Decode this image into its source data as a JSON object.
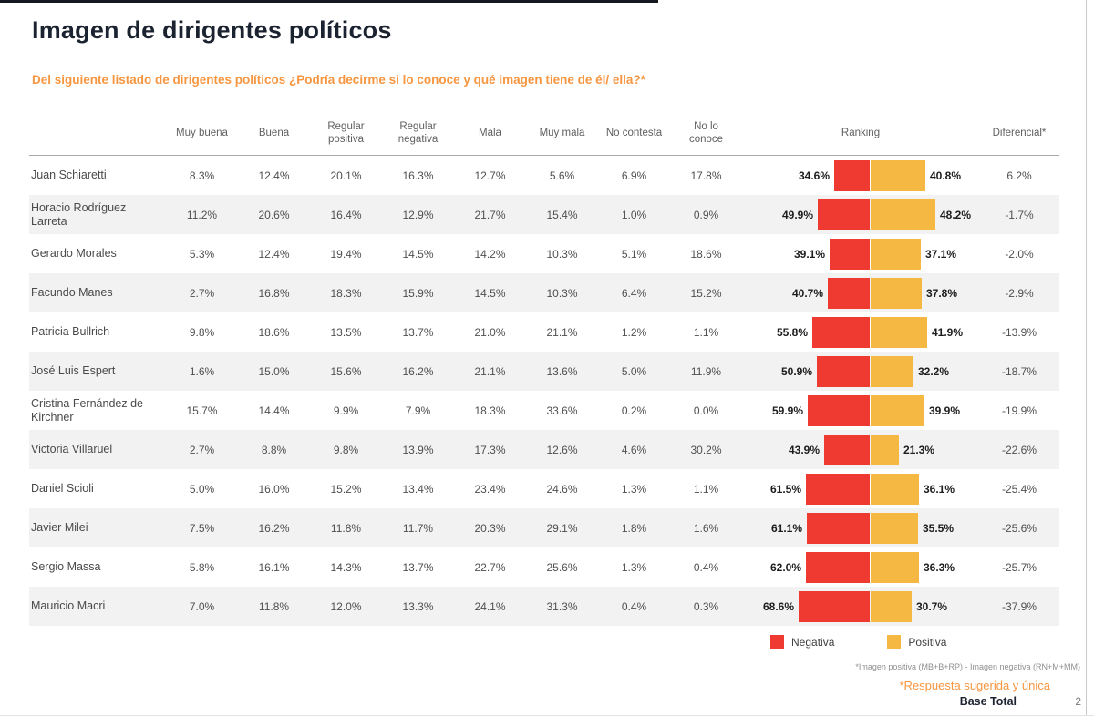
{
  "page": {
    "title": "Imagen de dirigentes políticos",
    "question": "Del siguiente listado de dirigentes políticos ¿Podría decirme si lo conoce y qué imagen tiene de él/ ella?*",
    "footnote_formula": "*Imagen positiva (MB+B+RP) - Imagen negativa (RN+M+MM)",
    "footnote_suggested": "*Respuesta sugerida y única",
    "base_label": "Base Total",
    "page_number": "2"
  },
  "colors": {
    "negative": "#ee3a31",
    "positive": "#f5b843",
    "accent_orange": "#f79640",
    "title_dark": "#1b2230"
  },
  "legend": [
    {
      "label": "Negativa",
      "color": "#ee3a31"
    },
    {
      "label": "Positiva",
      "color": "#f5b843"
    }
  ],
  "table": {
    "columns": [
      "Muy buena",
      "Buena",
      "Regular positiva",
      "Regular negativa",
      "Mala",
      "Muy mala",
      "No contesta",
      "No lo conoce",
      "Ranking",
      "Diferencial*"
    ],
    "rows": [
      {
        "name": "Juan Schiaretti",
        "values": [
          "8.3%",
          "12.4%",
          "20.1%",
          "16.3%",
          "12.7%",
          "5.6%",
          "6.9%",
          "17.8%"
        ],
        "neg": 34.6,
        "pos": 40.8,
        "dif": "6.2%"
      },
      {
        "name": "Horacio Rodríguez Larreta",
        "values": [
          "11.2%",
          "20.6%",
          "16.4%",
          "12.9%",
          "21.7%",
          "15.4%",
          "1.0%",
          "0.9%"
        ],
        "neg": 49.9,
        "pos": 48.2,
        "dif": "-1.7%"
      },
      {
        "name": "Gerardo Morales",
        "values": [
          "5.3%",
          "12.4%",
          "19.4%",
          "14.5%",
          "14.2%",
          "10.3%",
          "5.1%",
          "18.6%"
        ],
        "neg": 39.1,
        "pos": 37.1,
        "dif": "-2.0%"
      },
      {
        "name": "Facundo Manes",
        "values": [
          "2.7%",
          "16.8%",
          "18.3%",
          "15.9%",
          "14.5%",
          "10.3%",
          "6.4%",
          "15.2%"
        ],
        "neg": 40.7,
        "pos": 37.8,
        "dif": "-2.9%"
      },
      {
        "name": "Patricia Bullrich",
        "values": [
          "9.8%",
          "18.6%",
          "13.5%",
          "13.7%",
          "21.0%",
          "21.1%",
          "1.2%",
          "1.1%"
        ],
        "neg": 55.8,
        "pos": 41.9,
        "dif": "-13.9%"
      },
      {
        "name": "José Luis Espert",
        "values": [
          "1.6%",
          "15.0%",
          "15.6%",
          "16.2%",
          "21.1%",
          "13.6%",
          "5.0%",
          "11.9%"
        ],
        "neg": 50.9,
        "pos": 32.2,
        "dif": "-18.7%"
      },
      {
        "name": "Cristina Fernández de Kirchner",
        "values": [
          "15.7%",
          "14.4%",
          "9.9%",
          "7.9%",
          "18.3%",
          "33.6%",
          "0.2%",
          "0.0%"
        ],
        "neg": 59.9,
        "pos": 39.9,
        "dif": "-19.9%"
      },
      {
        "name": "Victoria Villaruel",
        "values": [
          "2.7%",
          "8.8%",
          "9.8%",
          "13.9%",
          "17.3%",
          "12.6%",
          "4.6%",
          "30.2%"
        ],
        "neg": 43.9,
        "pos": 21.3,
        "dif": "-22.6%"
      },
      {
        "name": "Daniel Scioli",
        "values": [
          "5.0%",
          "16.0%",
          "15.2%",
          "13.4%",
          "23.4%",
          "24.6%",
          "1.3%",
          "1.1%"
        ],
        "neg": 61.5,
        "pos": 36.1,
        "dif": "-25.4%"
      },
      {
        "name": "Javier Milei",
        "values": [
          "7.5%",
          "16.2%",
          "11.8%",
          "11.7%",
          "20.3%",
          "29.1%",
          "1.8%",
          "1.6%"
        ],
        "neg": 61.1,
        "pos": 35.5,
        "dif": "-25.6%"
      },
      {
        "name": "Sergio Massa",
        "values": [
          "5.8%",
          "16.1%",
          "14.3%",
          "13.7%",
          "22.7%",
          "25.6%",
          "1.3%",
          "0.4%"
        ],
        "neg": 62.0,
        "pos": 36.3,
        "dif": "-25.7%"
      },
      {
        "name": "Mauricio Macri",
        "values": [
          "7.0%",
          "11.8%",
          "12.0%",
          "13.3%",
          "24.1%",
          "31.3%",
          "0.4%",
          "0.3%"
        ],
        "neg": 68.6,
        "pos": 30.7,
        "dif": "-37.9%"
      }
    ]
  },
  "chart_data": {
    "type": "table",
    "title": "Imagen de dirigentes políticos",
    "subtitle": "Del siguiente listado de dirigentes políticos ¿Podría decirme si lo conoce y qué imagen tiene de él/ ella?*",
    "categories": [
      "Juan Schiaretti",
      "Horacio Rodríguez Larreta",
      "Gerardo Morales",
      "Facundo Manes",
      "Patricia Bullrich",
      "José Luis Espert",
      "Cristina Fernández de Kirchner",
      "Victoria Villaruel",
      "Daniel Scioli",
      "Javier Milei",
      "Sergio Massa",
      "Mauricio Macri"
    ],
    "series": [
      {
        "name": "Muy buena",
        "values": [
          8.3,
          11.2,
          5.3,
          2.7,
          9.8,
          1.6,
          15.7,
          2.7,
          5.0,
          7.5,
          5.8,
          7.0
        ]
      },
      {
        "name": "Buena",
        "values": [
          12.4,
          20.6,
          12.4,
          16.8,
          18.6,
          15.0,
          14.4,
          8.8,
          16.0,
          16.2,
          16.1,
          11.8
        ]
      },
      {
        "name": "Regular positiva",
        "values": [
          20.1,
          16.4,
          19.4,
          18.3,
          13.5,
          15.6,
          9.9,
          9.8,
          15.2,
          11.8,
          14.3,
          12.0
        ]
      },
      {
        "name": "Regular negativa",
        "values": [
          16.3,
          12.9,
          14.5,
          15.9,
          13.7,
          16.2,
          7.9,
          13.9,
          13.4,
          11.7,
          13.7,
          13.3
        ]
      },
      {
        "name": "Mala",
        "values": [
          12.7,
          21.7,
          14.2,
          14.5,
          21.0,
          21.1,
          18.3,
          17.3,
          23.4,
          20.3,
          22.7,
          24.1
        ]
      },
      {
        "name": "Muy mala",
        "values": [
          5.6,
          15.4,
          10.3,
          10.3,
          21.1,
          13.6,
          33.6,
          12.6,
          24.6,
          29.1,
          25.6,
          31.3
        ]
      },
      {
        "name": "No contesta",
        "values": [
          6.9,
          1.0,
          5.1,
          6.4,
          1.2,
          5.0,
          0.2,
          4.6,
          1.3,
          1.8,
          1.3,
          0.4
        ]
      },
      {
        "name": "No lo conoce",
        "values": [
          17.8,
          0.9,
          18.6,
          15.2,
          1.1,
          11.9,
          0.0,
          30.2,
          1.1,
          1.6,
          0.4,
          0.3
        ]
      },
      {
        "name": "Ranking Negativa (bar, red)",
        "values": [
          34.6,
          49.9,
          39.1,
          40.7,
          55.8,
          50.9,
          59.9,
          43.9,
          61.5,
          61.1,
          62.0,
          68.6
        ]
      },
      {
        "name": "Ranking Positiva (bar, yellow)",
        "values": [
          40.8,
          48.2,
          37.1,
          37.8,
          41.9,
          32.2,
          39.9,
          21.3,
          36.1,
          35.5,
          36.3,
          30.7
        ]
      },
      {
        "name": "Diferencial",
        "values": [
          6.2,
          -1.7,
          -2.0,
          -2.9,
          -13.9,
          -18.7,
          -19.9,
          -22.6,
          -25.4,
          -25.6,
          -25.7,
          -37.9
        ]
      }
    ],
    "legend_entries": [
      "Negativa",
      "Positiva"
    ],
    "legend_position": "bottom-right",
    "notes": [
      "*Imagen positiva (MB+B+RP) - Imagen negativa (RN+M+MM)",
      "*Respuesta sugerida y única",
      "Base Total"
    ]
  }
}
